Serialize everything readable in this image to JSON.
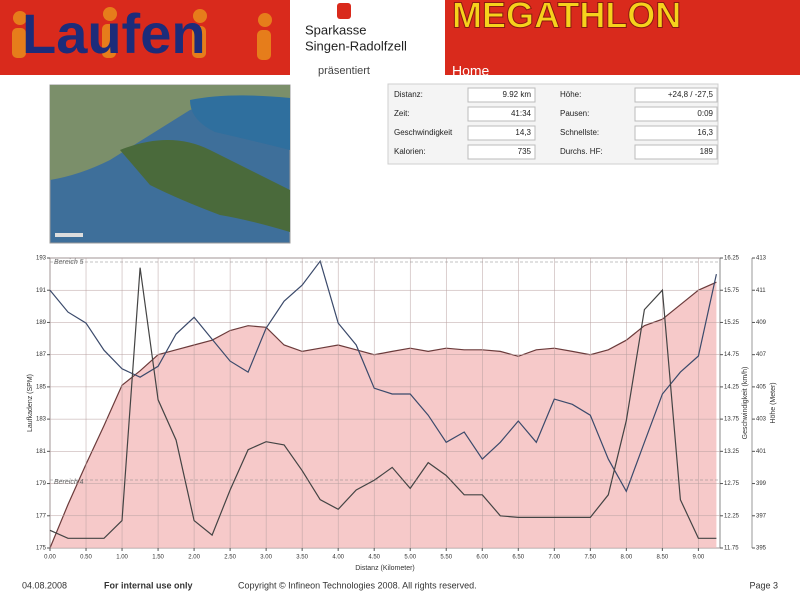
{
  "header": {
    "title": "Laufen",
    "sponsor": "Sparkasse",
    "sponsor_place": "Singen-Radolfzell",
    "presents": "präsentiert",
    "brand": "MEGATHLON",
    "nav": "Home"
  },
  "stats": {
    "rows": [
      [
        "Distanz:",
        "9.92 km",
        "Höhe:",
        "+24,8 / -27,5"
      ],
      [
        "Zeit:",
        "41:34",
        "Pausen:",
        "0:09"
      ],
      [
        "Geschwindigkeit",
        "14,3",
        "Schnellste:",
        "16,3"
      ],
      [
        "Kalorien:",
        "735",
        "Durchs. HF:",
        "189"
      ]
    ]
  },
  "chart_data": {
    "type": "line",
    "xlabel": "Distanz (Kilometer)",
    "ylabel": "Laufkadenz (SPM)",
    "y2label": "Geschwindigkeit (km/h)",
    "y3label": "Höhe (Meter)",
    "annotations": [
      "Bereich 5",
      "Bereich 4"
    ],
    "grid": true,
    "x": [
      0,
      0.25,
      0.5,
      0.75,
      1,
      1.25,
      1.5,
      1.75,
      2,
      2.25,
      2.5,
      2.75,
      3,
      3.25,
      3.5,
      3.75,
      4,
      4.25,
      4.5,
      4.75,
      5,
      5.25,
      5.5,
      5.75,
      6,
      6.25,
      6.5,
      6.75,
      7,
      7.25,
      7.5,
      7.75,
      8,
      8.25,
      8.5,
      8.75,
      9,
      9.25
    ],
    "xlim": [
      0,
      9.3
    ],
    "xticks": [
      {
        "value": 0,
        "label": "0.00"
      },
      {
        "value": 0.5,
        "label": "0.50"
      },
      {
        "value": 1,
        "label": "1.00"
      },
      {
        "value": 1.5,
        "label": "1.50"
      },
      {
        "value": 2,
        "label": "2.00"
      },
      {
        "value": 2.5,
        "label": "2.50"
      },
      {
        "value": 3,
        "label": "3.00"
      },
      {
        "value": 3.5,
        "label": "3.50"
      },
      {
        "value": 4,
        "label": "4.00"
      },
      {
        "value": 4.5,
        "label": "4.50"
      },
      {
        "value": 5,
        "label": "5.00"
      },
      {
        "value": 5.5,
        "label": "5.50"
      },
      {
        "value": 6,
        "label": "6.00"
      },
      {
        "value": 6.5,
        "label": "6.50"
      },
      {
        "value": 7,
        "label": "7.00"
      },
      {
        "value": 7.5,
        "label": "7.50"
      },
      {
        "value": 8,
        "label": "8.00"
      },
      {
        "value": 8.5,
        "label": "8.50"
      },
      {
        "value": 9,
        "label": "9.00"
      }
    ],
    "ylim": [
      175,
      193
    ],
    "yticks": [
      175,
      177,
      179,
      181,
      183,
      185,
      187,
      189,
      191,
      193
    ],
    "y2lim": [
      11.75,
      16.25
    ],
    "y2ticks": [
      11.75,
      12.25,
      12.75,
      13.25,
      13.75,
      14.25,
      14.75,
      15.25,
      15.75,
      16.25
    ],
    "y3lim": [
      395,
      413
    ],
    "y3ticks": [
      395,
      397,
      399,
      401,
      403,
      405,
      407,
      409,
      411,
      413
    ],
    "series": [
      {
        "kind": "area",
        "axis": "y3",
        "color": "#f6c9c9",
        "line_color": "#6b3b3b",
        "values": [
          395,
          397.7,
          400.2,
          402.6,
          405.1,
          406,
          407,
          407.3,
          407.6,
          407.9,
          408.5,
          408.8,
          408.7,
          407.6,
          407.2,
          407.4,
          407.6,
          407.3,
          407,
          407.2,
          407.4,
          407.2,
          407.4,
          407.3,
          407.3,
          407.2,
          406.9,
          407.3,
          407.4,
          407.2,
          407,
          407.3,
          407.9,
          408.8,
          409.2,
          410.1,
          411,
          411.5
        ]
      },
      {
        "kind": "line",
        "axis": "y2",
        "color": "#3b4a6b",
        "values": [
          15.75,
          15.41,
          15.24,
          14.82,
          14.53,
          14.4,
          14.57,
          15.07,
          15.33,
          14.99,
          14.65,
          14.48,
          15.16,
          15.58,
          15.83,
          16.2,
          15.24,
          14.9,
          14.23,
          14.14,
          14.14,
          13.81,
          13.39,
          13.55,
          13.13,
          13.39,
          13.72,
          13.39,
          14.06,
          13.98,
          13.81,
          13.13,
          12.63,
          13.39,
          14.14,
          14.48,
          14.73,
          16
        ]
      },
      {
        "kind": "line",
        "axis": "y",
        "color": "#444444",
        "values": [
          176.1,
          175.6,
          175.6,
          175.6,
          176.7,
          192.4,
          184.2,
          181.7,
          176.7,
          175.8,
          178.6,
          181.1,
          181.6,
          181.4,
          179.8,
          178,
          177.4,
          178.6,
          179.2,
          180,
          178.7,
          180.3,
          179.5,
          178.3,
          178.3,
          177,
          176.9,
          176.9,
          176.9,
          176.9,
          176.9,
          178.3,
          182.9,
          189.8,
          191,
          178,
          175.6,
          175.6
        ]
      }
    ]
  },
  "footer": {
    "date": "04.08.2008",
    "notice": "For internal use only",
    "copyright": "Copyright © Infineon Technologies 2008. All rights reserved.",
    "page": "Page 3"
  }
}
